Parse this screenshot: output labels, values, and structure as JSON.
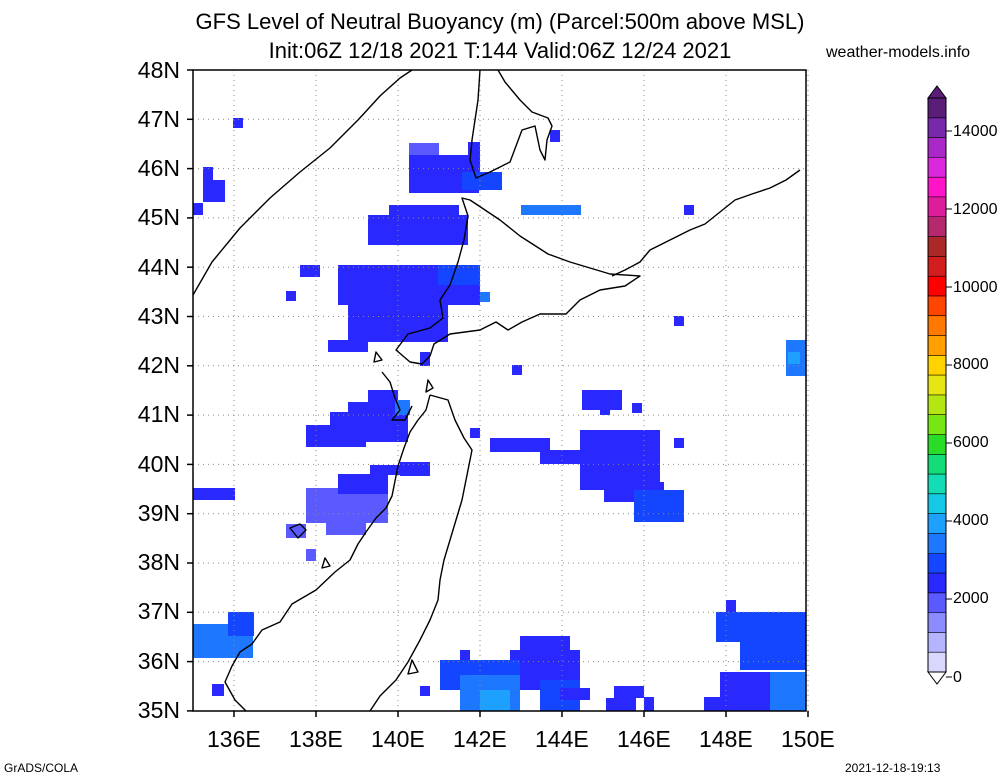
{
  "title_line1": "GFS Level of Neutral Buoyancy (m) (Parcel:500m above MSL)",
  "title_line2": "Init:06Z 12/18 2021 T:144 Valid:06Z 12/24 2021",
  "site": "weather-models.info",
  "footer_left": "GrADS/COLA",
  "footer_right": "2021-12-18-19:13",
  "lat_labels": [
    "48N",
    "47N",
    "46N",
    "45N",
    "44N",
    "43N",
    "42N",
    "41N",
    "40N",
    "39N",
    "38N",
    "37N",
    "36N",
    "35N"
  ],
  "lon_labels": [
    "136E",
    "138E",
    "140E",
    "142E",
    "144E",
    "146E",
    "148E",
    "150E"
  ],
  "colorbar": {
    "labels": [
      "14000",
      "12000",
      "10000",
      "8000",
      "6000",
      "4000",
      "2000",
      "0"
    ],
    "colors": [
      "#d8d8ff",
      "#b4b4ff",
      "#8c8cff",
      "#5a5aff",
      "#2828ff",
      "#1446ff",
      "#1e78ff",
      "#1ea0ff",
      "#14c8e6",
      "#14dcb4",
      "#14dc78",
      "#28dc28",
      "#78e614",
      "#b4e614",
      "#e6e614",
      "#ffd200",
      "#ffa000",
      "#ff7800",
      "#ff4600",
      "#ff0000",
      "#d21e1e",
      "#aa2828",
      "#b4286e",
      "#dc1e9b",
      "#ff14c8",
      "#dc28dc",
      "#aa28c8",
      "#7828aa",
      "#5a1e78"
    ]
  }
}
